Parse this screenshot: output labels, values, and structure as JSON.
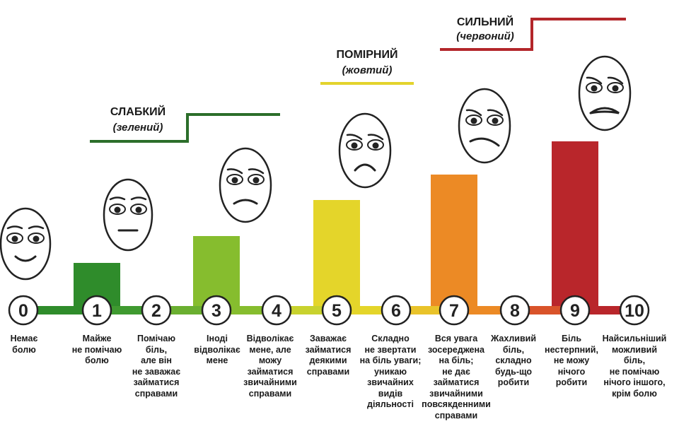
{
  "chart_data": {
    "type": "bar",
    "categories": [
      "0",
      "1",
      "2",
      "3",
      "4",
      "5",
      "6",
      "7",
      "8",
      "9",
      "10"
    ],
    "bars": [
      {
        "level": 1,
        "color": "#2f8c2b"
      },
      {
        "level": 3,
        "color": "#86bd2e"
      },
      {
        "level": 5,
        "color": "#e4d52a"
      },
      {
        "level": 7,
        "color": "#ec8a25"
      },
      {
        "level": 9,
        "color": "#b9262b"
      }
    ],
    "line_segment_colors": [
      "#2f8c2b",
      "#3f9a30",
      "#6aaf30",
      "#86bd2e",
      "#c8d22e",
      "#e4d52a",
      "#e9c32a",
      "#ec8a25",
      "#d9532a",
      "#b9262b"
    ]
  },
  "categories": [
    {
      "title": "СЛАБКИЙ",
      "subtitle": "(зелений)",
      "color": "#2c6e2a"
    },
    {
      "title": "ПОМІРНИЙ",
      "subtitle": "(жовтий)",
      "color": "#e3d32c"
    },
    {
      "title": "СИЛЬНИЙ",
      "subtitle": "(червоний)",
      "color": "#b3262a"
    }
  ],
  "levels": [
    {
      "number": "0",
      "description": "Немає\nболю"
    },
    {
      "number": "1",
      "description": "Майже\nне помічаю\nболю"
    },
    {
      "number": "2",
      "description": "Помічаю\nбіль,\nале він\nне заважає\nзайматися\nсправами"
    },
    {
      "number": "3",
      "description": "Іноді\nвідволікає\nмене"
    },
    {
      "number": "4",
      "description": "Відволікає\nмене, але\nможу\nзайматися\nзвичайними\nсправами"
    },
    {
      "number": "5",
      "description": "Заважає\nзайматися\nдеякими\nсправами"
    },
    {
      "number": "6",
      "description": "Складно\nне звертати\nна біль уваги;\nуникаю\nзвичайних\nвидів\nдіяльності"
    },
    {
      "number": "7",
      "description": "Вся увага\nзосереджена\nна біль;\nне дає\nзайматися\nзвичайними\nповсякденними\nсправами"
    },
    {
      "number": "8",
      "description": "Жахливий\nбіль,\nскладно\nбудь-що\nробити"
    },
    {
      "number": "9",
      "description": "Біль\nнестерпний,\nне можу\nнічого\nробити"
    },
    {
      "number": "10",
      "description": "Найсильніший\nможливий\nбіль,\nне помічаю\nнічого іншого,\nкрім болю"
    }
  ]
}
